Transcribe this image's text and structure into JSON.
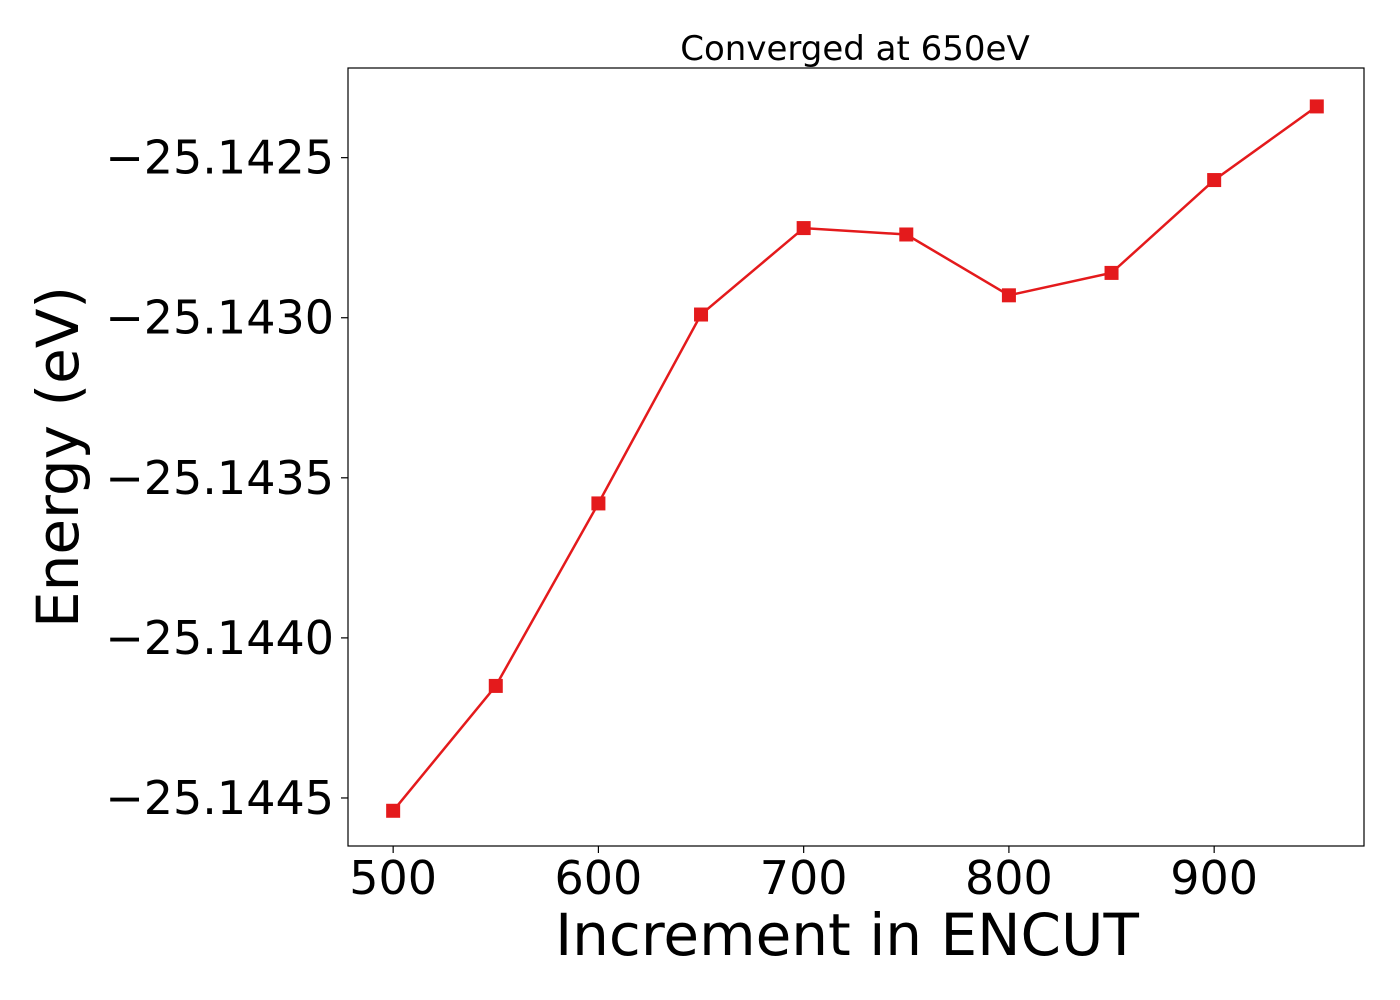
{
  "chart_data": {
    "type": "line",
    "title": "Converged at 650eV",
    "xlabel": "Increment in ENCUT",
    "ylabel": "Energy (eV)",
    "x": [
      500,
      550,
      600,
      650,
      700,
      750,
      800,
      850,
      900,
      950
    ],
    "series": [
      {
        "values": [
          -25.14454,
          -25.14415,
          -25.14358,
          -25.14299,
          -25.14272,
          -25.14274,
          -25.14293,
          -25.14286,
          -25.14257,
          -25.14234
        ],
        "color": "#e41a1c",
        "marker": "square"
      }
    ],
    "xticks": [
      500,
      600,
      700,
      800,
      900
    ],
    "xtick_labels": [
      "500",
      "600",
      "700",
      "800",
      "900"
    ],
    "yticks": [
      -25.1445,
      -25.144,
      -25.1435,
      -25.143,
      -25.1425
    ],
    "ytick_labels": [
      "−25.1445",
      "−25.1440",
      "−25.1435",
      "−25.1430",
      "−25.1425"
    ],
    "xlim": [
      478,
      973
    ],
    "ylim": [
      -25.14465,
      -25.14222
    ],
    "grid": false,
    "legend": "none"
  }
}
